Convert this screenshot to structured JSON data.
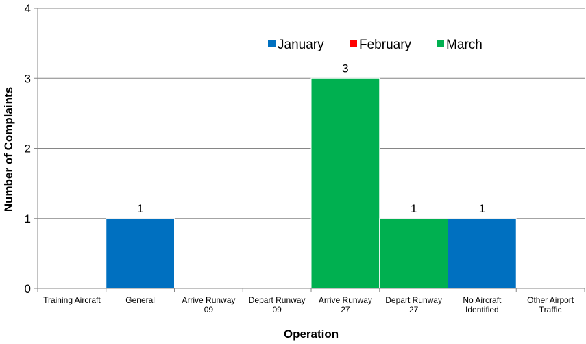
{
  "chart_data": {
    "type": "bar",
    "title": "",
    "xlabel": "Operation",
    "ylabel": "Number of Complaints",
    "ylim": [
      0,
      4
    ],
    "yticks": [
      "0",
      "1",
      "2",
      "3",
      "4"
    ],
    "grid": true,
    "legend_position": "top-right",
    "categories": [
      [
        "Training Aircraft"
      ],
      [
        "General"
      ],
      [
        "Arrive Runway",
        "09"
      ],
      [
        "Depart Runway",
        "09"
      ],
      [
        "Arrive Runway",
        "27"
      ],
      [
        "Depart Runway",
        "27"
      ],
      [
        "No Aircraft",
        "Identified"
      ],
      [
        "Other Airport",
        "Traffic"
      ]
    ],
    "series": [
      {
        "name": "January",
        "color": "#0070C0",
        "values": [
          0,
          1,
          0,
          0,
          0,
          0,
          1,
          0
        ]
      },
      {
        "name": "February",
        "color": "#FF0000",
        "values": [
          0,
          0,
          0,
          0,
          0,
          0,
          0,
          0
        ]
      },
      {
        "name": "March",
        "color": "#00B050",
        "values": [
          0,
          0,
          0,
          0,
          3,
          1,
          0,
          0
        ]
      }
    ]
  }
}
